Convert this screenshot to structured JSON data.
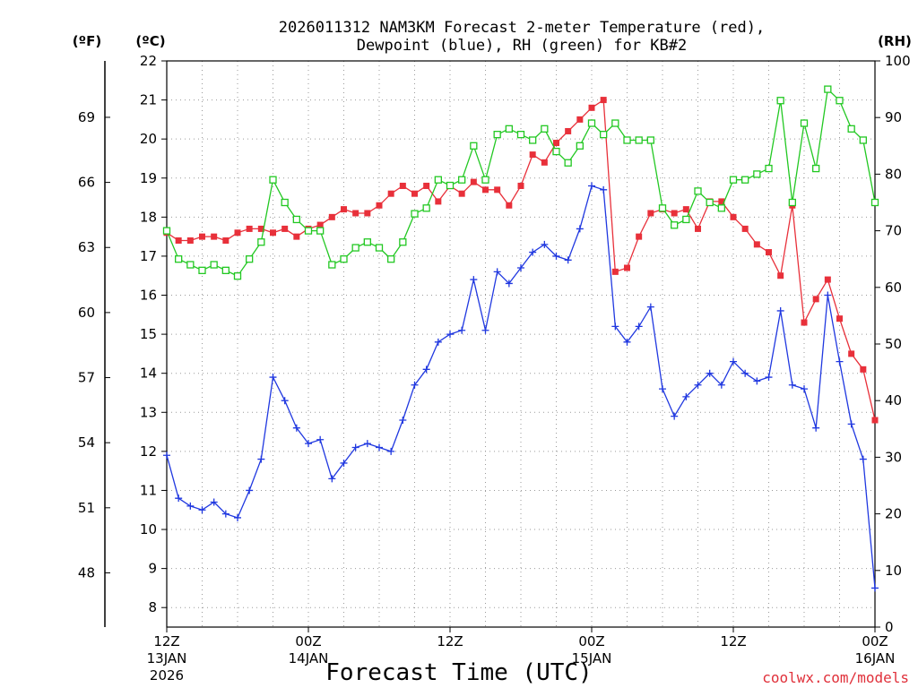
{
  "chart_data": {
    "type": "line",
    "title_line1": "2026011312 NAM3KM Forecast 2-meter Temperature (red),",
    "title_line2": "Dewpoint (blue), RH (green) for KB#2",
    "units": {
      "fahrenheit": "(ºF)",
      "celsius": "(ºC)",
      "rh": "(RH)"
    },
    "xlabel": "Forecast Time (UTC)",
    "credit": "coolwx.com/models",
    "x_range_hours": [
      0,
      60
    ],
    "x_ticks": [
      {
        "hour": 0,
        "label1": "12Z",
        "label2": "13JAN",
        "label3": "2026"
      },
      {
        "hour": 12,
        "label1": "00Z",
        "label2": "14JAN",
        "label3": ""
      },
      {
        "hour": 24,
        "label1": "12Z",
        "label2": "",
        "label3": ""
      },
      {
        "hour": 36,
        "label1": "00Z",
        "label2": "15JAN",
        "label3": ""
      },
      {
        "hour": 48,
        "label1": "12Z",
        "label2": "",
        "label3": ""
      },
      {
        "hour": 60,
        "label1": "00Z",
        "label2": "16JAN",
        "label3": ""
      }
    ],
    "celsius_range": [
      7.5,
      22.0
    ],
    "celsius_ticks": [
      "8",
      "9",
      "10",
      "11",
      "12",
      "13",
      "14",
      "15",
      "16",
      "17",
      "18",
      "19",
      "20",
      "21",
      "22"
    ],
    "fahrenheit_ticks": [
      "48",
      "51",
      "54",
      "57",
      "60",
      "63",
      "66",
      "69"
    ],
    "rh_range": [
      0,
      100
    ],
    "rh_ticks": [
      "0",
      "10",
      "20",
      "30",
      "40",
      "50",
      "60",
      "70",
      "80",
      "90",
      "100"
    ],
    "series": [
      {
        "name": "Temperature",
        "color": "#e8303a",
        "marker": "filled-square",
        "values": [
          17.6,
          17.4,
          17.4,
          17.5,
          17.5,
          17.4,
          17.6,
          17.7,
          17.7,
          17.6,
          17.7,
          17.5,
          17.7,
          17.8,
          18.0,
          18.2,
          18.1,
          18.1,
          18.3,
          18.6,
          18.8,
          18.6,
          18.8,
          18.4,
          18.8,
          18.6,
          18.9,
          18.7,
          18.7,
          18.3,
          18.8,
          19.6,
          19.4,
          19.9,
          20.2,
          20.5,
          20.8,
          21.0,
          16.6,
          16.7,
          17.5,
          18.1,
          18.2,
          18.1,
          18.2,
          17.7,
          18.4,
          18.4,
          18.0,
          17.7,
          17.3,
          17.1,
          16.5,
          18.3,
          15.3,
          15.9,
          16.4,
          15.4,
          14.5,
          14.1,
          12.8
        ]
      },
      {
        "name": "Dewpoint",
        "color": "#2038e0",
        "marker": "plus",
        "values": [
          11.9,
          10.8,
          10.6,
          10.5,
          10.7,
          10.4,
          10.3,
          11.0,
          11.8,
          13.9,
          13.3,
          12.6,
          12.2,
          12.3,
          11.3,
          11.7,
          12.1,
          12.2,
          12.1,
          12.0,
          12.8,
          13.7,
          14.1,
          14.8,
          15.0,
          15.1,
          16.4,
          15.1,
          16.6,
          16.3,
          16.7,
          17.1,
          17.3,
          17.0,
          16.9,
          17.7,
          18.8,
          18.7,
          15.2,
          14.8,
          15.2,
          15.7,
          13.6,
          12.9,
          13.4,
          13.7,
          14.0,
          13.7,
          14.3,
          14.0,
          13.8,
          13.9,
          15.6,
          13.7,
          13.6,
          12.6,
          16.0,
          14.3,
          12.7,
          11.8,
          8.5
        ]
      },
      {
        "name": "RH",
        "color": "#22c822",
        "marker": "open-square",
        "values": [
          70,
          65,
          64,
          63,
          64,
          63,
          62,
          65,
          68,
          79,
          75,
          72,
          70,
          70,
          64,
          65,
          67,
          68,
          67,
          65,
          68,
          73,
          74,
          79,
          78,
          79,
          85,
          79,
          87,
          88,
          87,
          86,
          88,
          84,
          82,
          85,
          89,
          87,
          89,
          86,
          86,
          86,
          74,
          71,
          72,
          77,
          75,
          74,
          79,
          79,
          80,
          81,
          93,
          75,
          89,
          81,
          95,
          93,
          88,
          86,
          75
        ]
      }
    ]
  }
}
